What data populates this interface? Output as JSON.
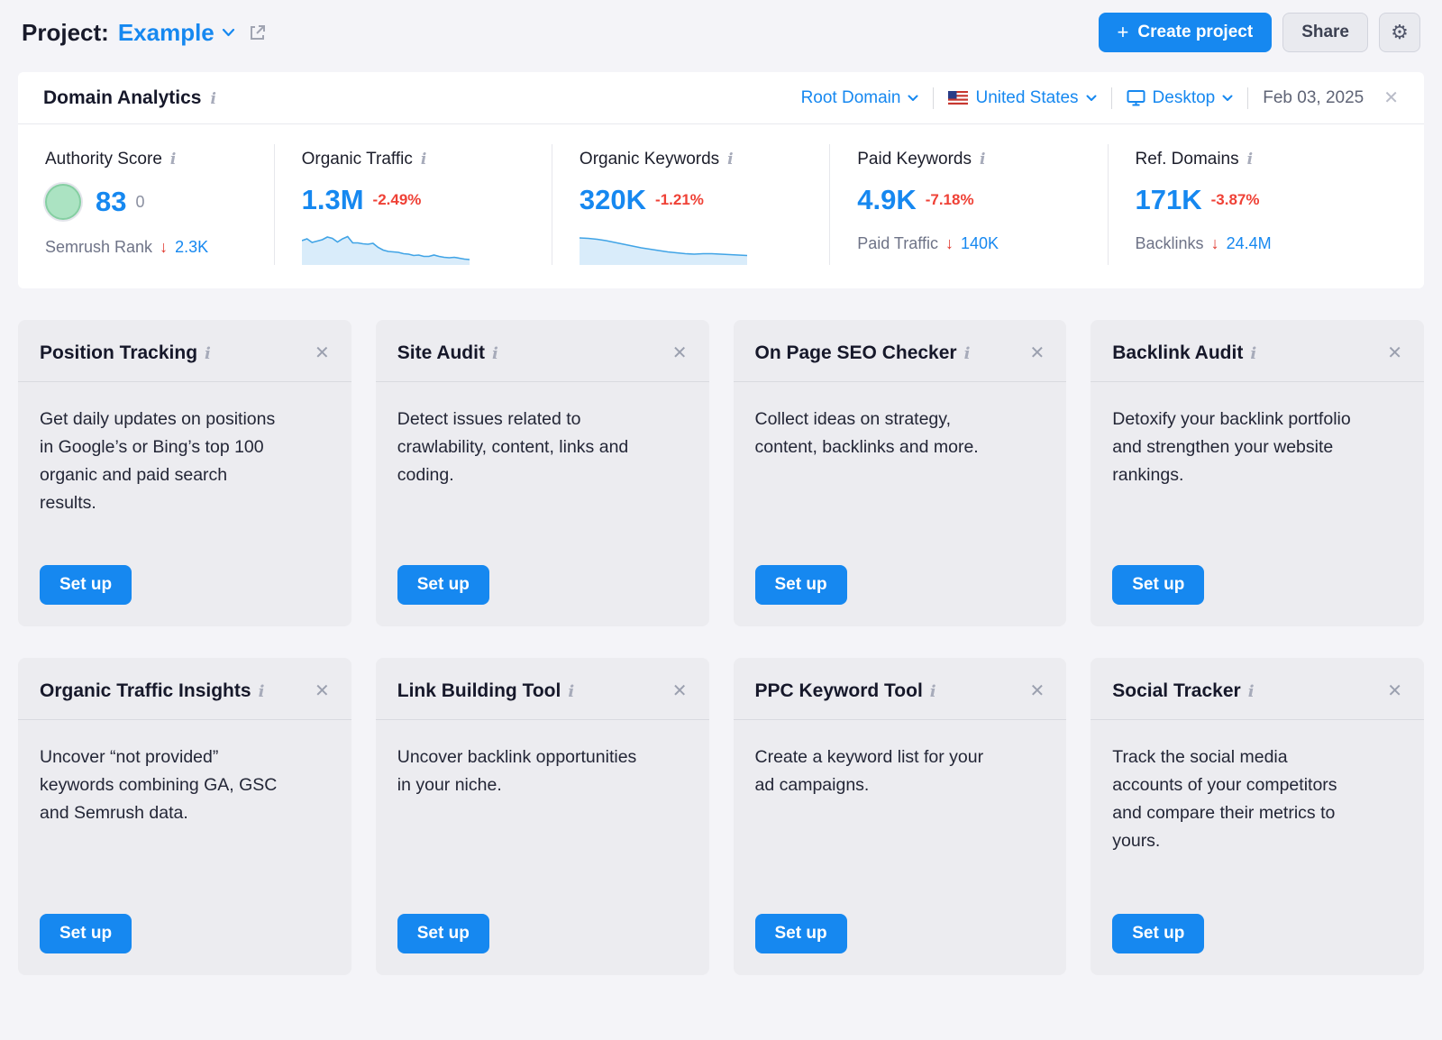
{
  "colors": {
    "accent_blue": "#1688f0",
    "negative_red": "#ef4136",
    "spark_line": "#41a4e6",
    "spark_fill": "#d9ecfa",
    "score_green": "#abe3c2"
  },
  "header": {
    "project_label": "Project:",
    "project_name": "Example",
    "create_project_label": "Create project",
    "plus_glyph": "+",
    "share_label": "Share",
    "gear_glyph": "⚙"
  },
  "panel": {
    "title": "Domain Analytics",
    "info_glyph": "i",
    "close_glyph": "✕",
    "filters": {
      "root_domain": "Root Domain",
      "country": "United States",
      "device": "Desktop",
      "date": "Feb 03, 2025"
    },
    "metrics": [
      {
        "label": "Authority Score",
        "value": "83",
        "zero": "0",
        "sub_label": "Semrush Rank",
        "sub_arrow": "↓",
        "sub_value": "2.3K"
      },
      {
        "label": "Organic Traffic",
        "value": "1.3M",
        "change": "-2.49%",
        "spark": [
          13,
          11,
          15,
          13.5,
          12,
          9,
          10.5,
          14.5,
          11,
          8.5,
          15.5,
          15.5,
          16.5,
          17,
          16,
          20.5,
          23.5,
          25,
          25.5,
          26,
          27.5,
          28,
          29.5,
          29,
          30.5,
          30.5,
          29,
          30.5,
          31.5,
          32,
          31.5,
          32.5,
          33.5,
          34
        ]
      },
      {
        "label": "Organic Keywords",
        "value": "320K",
        "change": "-1.21%",
        "spark": [
          10,
          10.5,
          11.5,
          13,
          15,
          17,
          19,
          21,
          22.5,
          24,
          25.5,
          26.5,
          27.5,
          28,
          27.5,
          27.5,
          28,
          28.5,
          29,
          29.5
        ]
      },
      {
        "label": "Paid Keywords",
        "value": "4.9K",
        "change": "-7.18%",
        "sub_label": "Paid Traffic",
        "sub_arrow": "↓",
        "sub_value": "140K"
      },
      {
        "label": "Ref. Domains",
        "value": "171K",
        "change": "-3.87%",
        "sub_label": "Backlinks",
        "sub_arrow": "↓",
        "sub_value": "24.4M"
      }
    ]
  },
  "cards": [
    {
      "title": "Position Tracking",
      "description": "Get daily updates on positions in Google’s or Bing’s top 100 organic and paid search results.",
      "button": "Set up"
    },
    {
      "title": "Site Audit",
      "description": "Detect issues related to crawlability, content, links and coding.",
      "button": "Set up"
    },
    {
      "title": "On Page SEO Checker",
      "description": "Collect ideas on strategy, content, backlinks and more.",
      "button": "Set up"
    },
    {
      "title": "Backlink Audit",
      "description": "Detoxify your backlink portfolio and strengthen your website rankings.",
      "button": "Set up"
    },
    {
      "title": "Organic Traffic Insights",
      "description": "Uncover “not provided” keywords combining GA, GSC and Semrush data.",
      "button": "Set up"
    },
    {
      "title": "Link Building Tool",
      "description": "Uncover backlink opportunities in your niche.",
      "button": "Set up"
    },
    {
      "title": "PPC Keyword Tool",
      "description": "Create a keyword list for your ad campaigns.",
      "button": "Set up"
    },
    {
      "title": "Social Tracker",
      "description": "Track the social media accounts of your competitors and compare their metrics to yours.",
      "button": "Set up"
    }
  ]
}
